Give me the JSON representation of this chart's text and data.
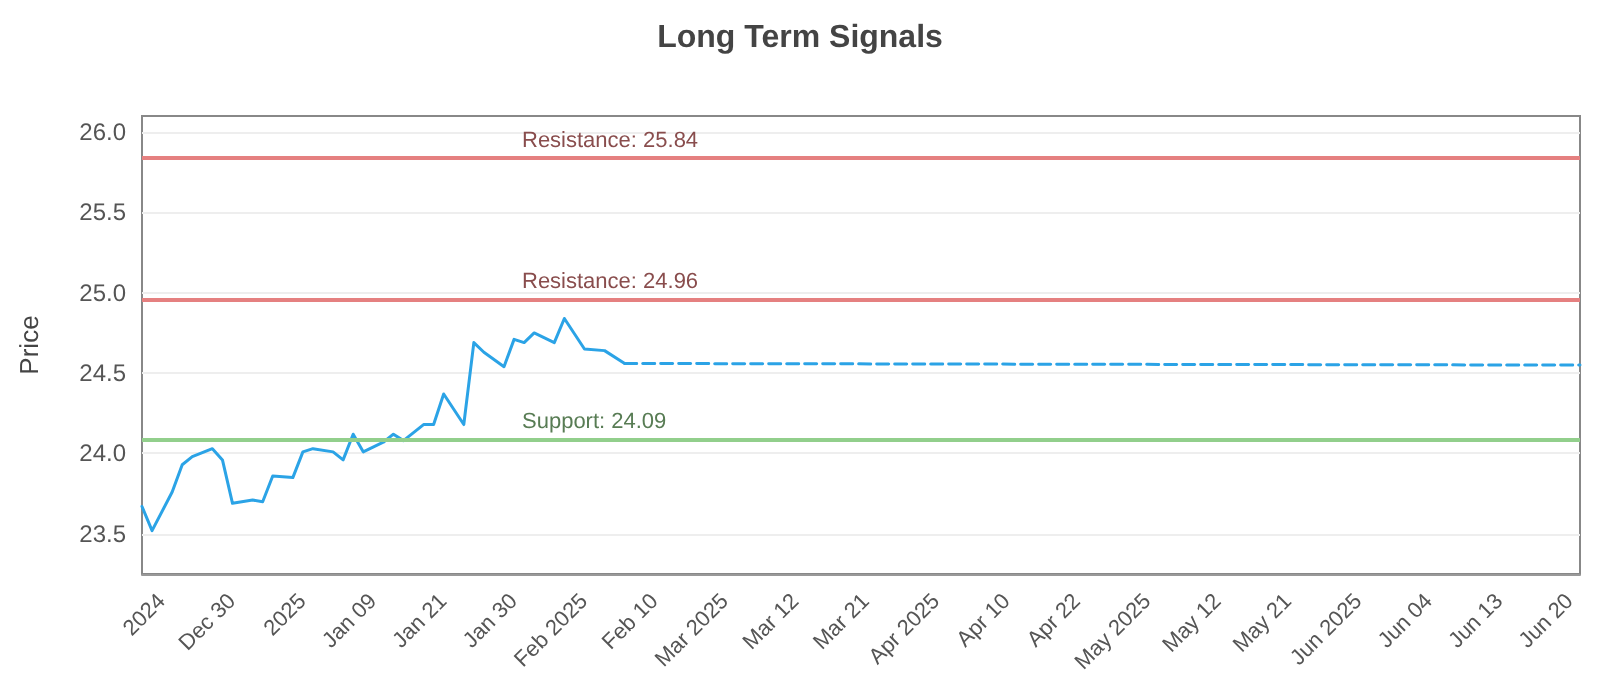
{
  "chart_data": {
    "type": "line",
    "title": "Long Term Signals",
    "ylabel": "Price",
    "categories": [
      null,
      null,
      "2024",
      null,
      null,
      null,
      null,
      null,
      null,
      "Dec 30",
      null,
      null,
      null,
      null,
      null,
      null,
      "2025",
      null,
      null,
      null,
      null,
      null,
      null,
      "Jan 09",
      null,
      null,
      null,
      null,
      null,
      null,
      "Jan 21",
      null,
      null,
      null,
      null,
      null,
      null,
      "Jan 30",
      null,
      null,
      null,
      null,
      null,
      null,
      "Feb 2025",
      null,
      null,
      null,
      null,
      null,
      null,
      "Feb 10",
      null,
      null,
      null,
      null,
      null,
      null,
      "Mar 2025",
      null,
      null,
      null,
      null,
      null,
      null,
      "Mar 12",
      null,
      null,
      null,
      null,
      null,
      null,
      "Mar 21",
      null,
      null,
      null,
      null,
      null,
      null,
      "Apr 2025",
      null,
      null,
      null,
      null,
      null,
      null,
      "Apr 10",
      null,
      null,
      null,
      null,
      null,
      null,
      "Apr 22",
      null,
      null,
      null,
      null,
      null,
      null,
      "May 2025",
      null,
      null,
      null,
      null,
      null,
      null,
      "May 12",
      null,
      null,
      null,
      null,
      null,
      null,
      "May 21",
      null,
      null,
      null,
      null,
      null,
      null,
      "Jun 2025",
      null,
      null,
      null,
      null,
      null,
      null,
      "Jun 04",
      null,
      null,
      null,
      null,
      null,
      null,
      "Jun 13",
      null,
      null,
      null,
      null,
      null,
      null,
      "Jun 20",
      null
    ],
    "series": [
      {
        "color": "#2ba3e6",
        "line_style": "solid",
        "values": [
          23.67,
          23.52,
          null,
          23.76,
          23.93,
          23.98,
          null,
          24.03,
          23.96,
          23.69,
          null,
          23.71,
          23.7,
          23.86,
          null,
          23.85,
          24.01,
          24.03,
          null,
          24.01,
          23.96,
          24.12,
          24.01,
          null,
          24.07,
          24.12,
          24.08,
          null,
          24.18,
          24.18,
          24.37,
          null,
          24.18,
          24.69,
          24.63,
          null,
          24.54,
          24.71,
          24.69,
          24.75,
          null,
          24.69,
          24.84,
          null,
          24.65,
          null,
          24.64,
          null,
          24.56,
          null,
          null,
          null,
          null,
          null,
          null,
          null,
          null,
          null,
          null,
          null,
          null,
          null,
          null,
          null,
          null,
          null,
          null,
          null,
          null,
          null,
          null,
          null,
          null,
          null,
          null,
          null,
          null,
          null,
          null,
          null,
          null,
          null,
          null,
          null,
          null,
          null,
          null,
          null,
          null,
          null,
          null,
          null,
          null,
          null,
          null,
          null,
          null,
          null,
          null,
          null,
          null,
          null,
          null,
          null,
          null,
          null,
          null,
          null,
          null,
          null,
          null,
          null,
          null,
          null,
          null,
          null,
          null,
          null,
          null,
          null,
          null,
          null,
          null,
          null,
          null,
          null,
          null,
          null,
          null,
          null,
          null,
          null,
          null,
          null,
          null,
          null,
          null,
          null,
          null,
          null,
          null,
          null,
          null,
          null
        ]
      },
      {
        "color": "#2ba3e6",
        "line_style": "dashed",
        "values": [
          null,
          null,
          null,
          null,
          null,
          null,
          null,
          null,
          null,
          null,
          null,
          null,
          null,
          null,
          null,
          null,
          null,
          null,
          null,
          null,
          null,
          null,
          null,
          null,
          null,
          null,
          null,
          null,
          null,
          null,
          null,
          null,
          null,
          null,
          null,
          null,
          null,
          null,
          null,
          null,
          null,
          null,
          null,
          null,
          null,
          null,
          null,
          null,
          24.56,
          null,
          null,
          null,
          null,
          null,
          null,
          null,
          null,
          null,
          null,
          null,
          null,
          null,
          null,
          null,
          null,
          null,
          null,
          null,
          null,
          null,
          null,
          null,
          null,
          null,
          null,
          null,
          null,
          null,
          null,
          null,
          null,
          null,
          null,
          null,
          null,
          null,
          null,
          null,
          null,
          null,
          null,
          null,
          null,
          null,
          null,
          null,
          null,
          null,
          null,
          null,
          null,
          null,
          null,
          null,
          null,
          null,
          null,
          null,
          null,
          null,
          null,
          null,
          null,
          null,
          null,
          null,
          null,
          null,
          null,
          null,
          null,
          null,
          null,
          null,
          null,
          null,
          null,
          null,
          null,
          null,
          null,
          null,
          null,
          null,
          null,
          null,
          null,
          null,
          null,
          null,
          null,
          null,
          null,
          24.55
        ]
      }
    ],
    "ylim": [
      23.25,
      26.1
    ],
    "yticks": [
      {
        "value": 23.5,
        "label": "23.5"
      },
      {
        "value": 24,
        "label": "24.0"
      },
      {
        "value": 24.5,
        "label": "24.5"
      },
      {
        "value": 25,
        "label": "25.0"
      },
      {
        "value": 25.5,
        "label": "25.5"
      },
      {
        "value": 26,
        "label": "26.0"
      }
    ],
    "grid": "y",
    "marker": "none",
    "ref_lines": [
      {
        "axis": "y",
        "value": 25.84,
        "label": "Resistance: 25.84",
        "color": "#e58080"
      },
      {
        "axis": "y",
        "value": 24.96,
        "label": "Resistance: 24.96",
        "color": "#e58080"
      },
      {
        "axis": "y",
        "value": 24.09,
        "label": "Support: 24.09",
        "color": "#92cf8c"
      }
    ]
  }
}
